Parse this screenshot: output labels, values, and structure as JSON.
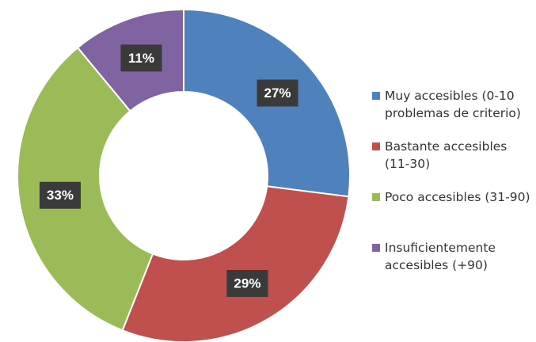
{
  "chart_data": {
    "type": "donut",
    "categories": [
      "Muy accesibles (0-10 problemas de criterio)",
      "Bastante accesibles (11-30)",
      "Poco accesibles (31-90)",
      "Insuficientemente accesibles (+90)"
    ],
    "values": [
      27,
      29,
      33,
      11
    ],
    "value_labels": [
      "27%",
      "29%",
      "33%",
      "11%"
    ],
    "colors": [
      "#4f81bd",
      "#c0504d",
      "#9bbb59",
      "#8064a2"
    ],
    "legend": "right"
  }
}
